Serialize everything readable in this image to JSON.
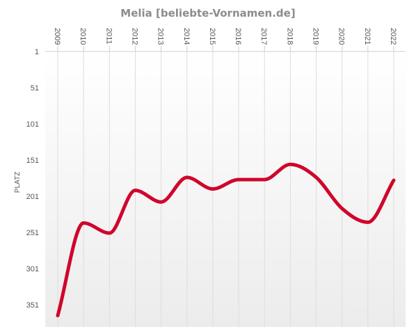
{
  "chart_data": {
    "type": "line",
    "title": "Melia [beliebte-Vornamen.de]",
    "ylabel": "PLATZ",
    "xlabel": "",
    "y_axis_reversed": true,
    "ylim": [
      1,
      366
    ],
    "yticks": [
      1,
      51,
      101,
      151,
      201,
      251,
      301,
      351
    ],
    "categories": [
      "2009",
      "2010",
      "2011",
      "2012",
      "2013",
      "2014",
      "2015",
      "2016",
      "2017",
      "2018",
      "2019",
      "2020",
      "2021",
      "2022"
    ],
    "series": [
      {
        "values": [
          366,
          238,
          252,
          193,
          209,
          175,
          191,
          178,
          178,
          157,
          175,
          218,
          237,
          179
        ]
      }
    ],
    "grid": "vertical",
    "legend": "none",
    "colors": {
      "line": "#d0062b",
      "grid": "#dddddd",
      "axis": "#cccccc",
      "text": "#555555",
      "title": "#8c8c8c"
    }
  }
}
